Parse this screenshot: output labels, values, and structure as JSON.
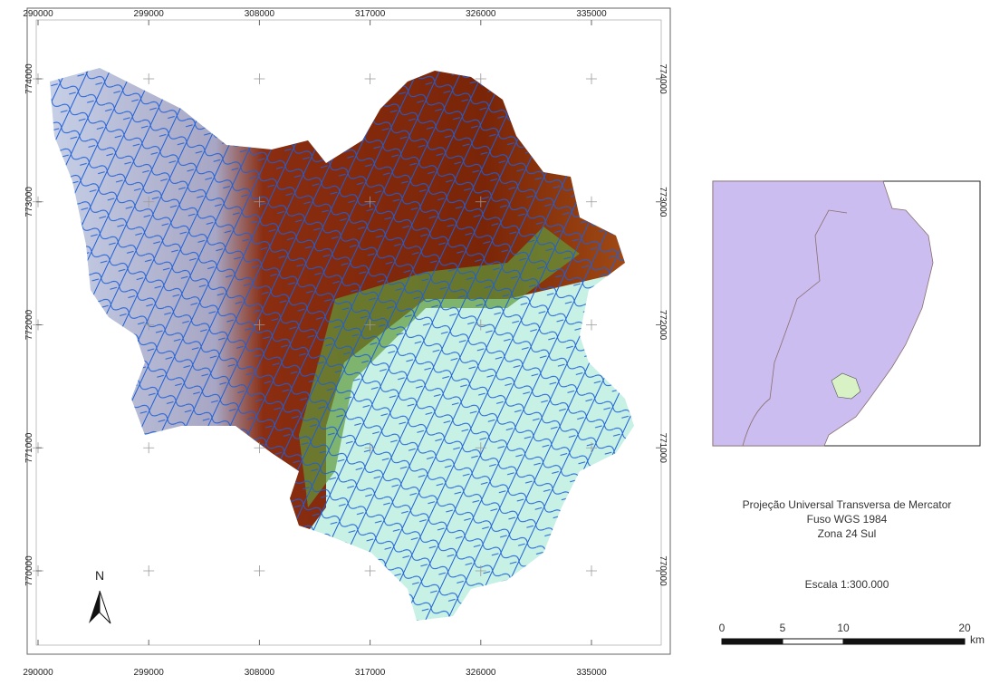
{
  "map": {
    "x_ticks": [
      290000,
      299000,
      308000,
      317000,
      326000,
      335000
    ],
    "y_ticks": [
      774000,
      773000,
      772000,
      771000,
      770000
    ],
    "north": "N"
  },
  "legend": {
    "projection": [
      "Projeção Universal Transversa de Mercator",
      "Fuso WGS 1984",
      "Zona 24 Sul"
    ],
    "scale_text": "Escala 1:300.000",
    "scale_bar": {
      "ticks": [
        0,
        5,
        10,
        20
      ],
      "unit": "km"
    }
  }
}
